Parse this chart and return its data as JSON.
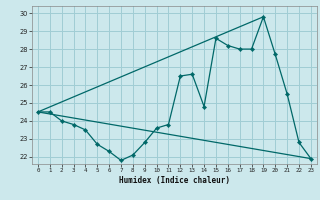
{
  "xlabel": "Humidex (Indice chaleur)",
  "bg_color": "#cce8ec",
  "grid_color": "#a0cdd4",
  "line_color": "#006868",
  "xlim": [
    -0.5,
    23.5
  ],
  "ylim": [
    21.6,
    30.4
  ],
  "yticks": [
    22,
    23,
    24,
    25,
    26,
    27,
    28,
    29,
    30
  ],
  "xticks": [
    0,
    1,
    2,
    3,
    4,
    5,
    6,
    7,
    8,
    9,
    10,
    11,
    12,
    13,
    14,
    15,
    16,
    17,
    18,
    19,
    20,
    21,
    22,
    23
  ],
  "line1_x": [
    0,
    1,
    2,
    3,
    4,
    5,
    6,
    7,
    8,
    9,
    10,
    11,
    12,
    13,
    14,
    15,
    16,
    17,
    18,
    19,
    20,
    21,
    22,
    23
  ],
  "line1_y": [
    24.5,
    24.5,
    24.0,
    23.8,
    23.5,
    22.7,
    22.3,
    21.8,
    22.1,
    22.8,
    23.6,
    23.8,
    26.5,
    26.6,
    24.8,
    28.6,
    28.2,
    28.0,
    28.0,
    29.8,
    27.7,
    25.5,
    22.8,
    21.9
  ],
  "line2_x": [
    0,
    19
  ],
  "line2_y": [
    24.5,
    29.8
  ],
  "line3_x": [
    0,
    23
  ],
  "line3_y": [
    24.5,
    21.9
  ]
}
